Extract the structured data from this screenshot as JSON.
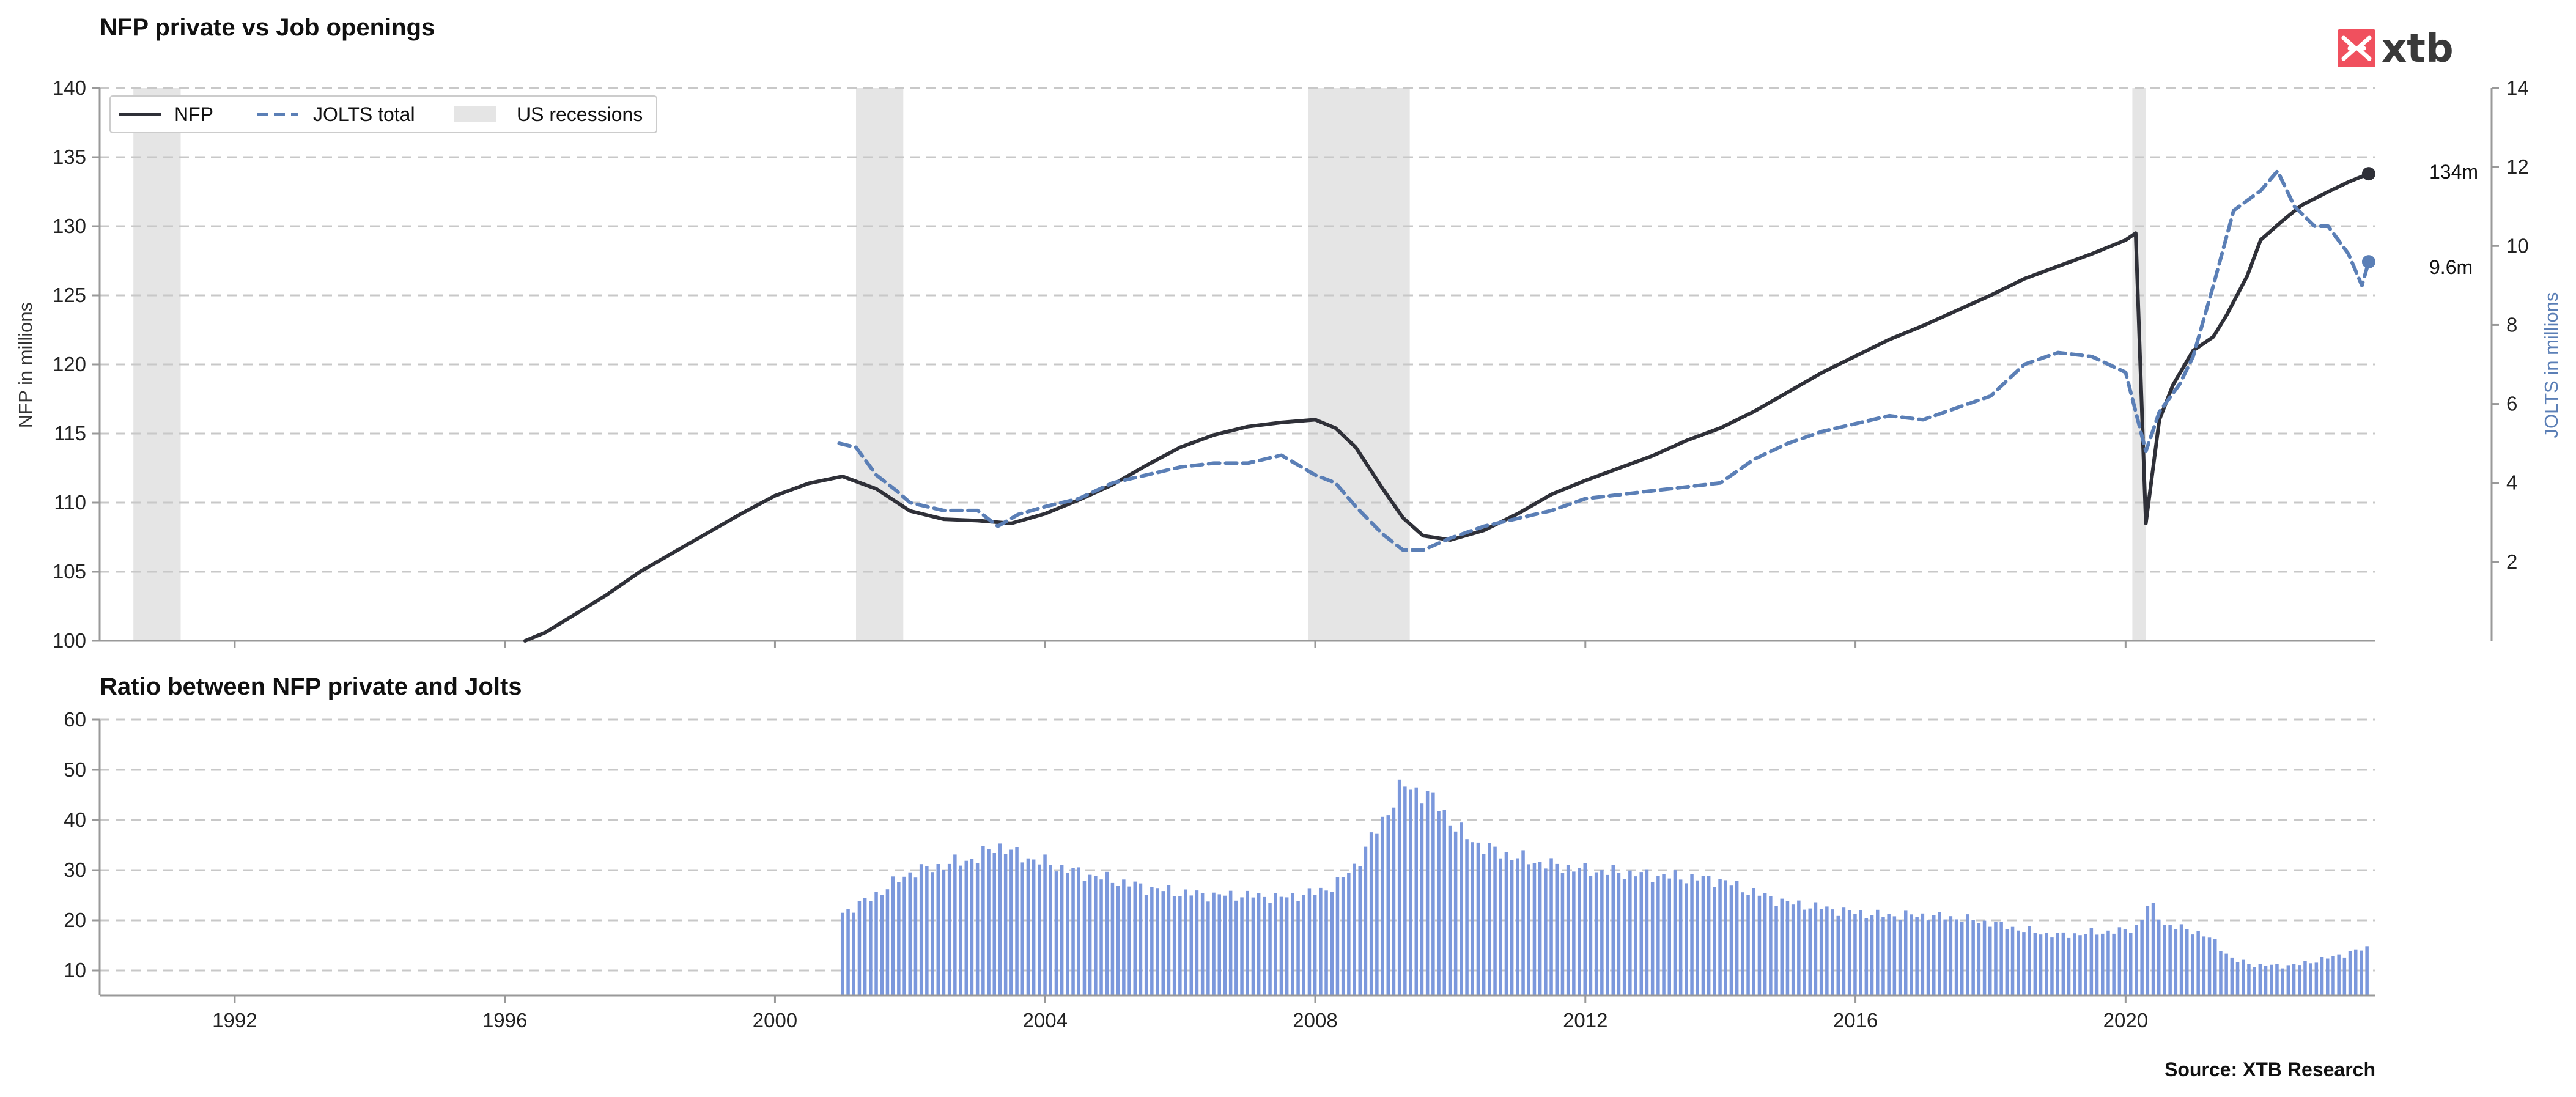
{
  "colors": {
    "nfp": "#2f3038",
    "jolts": "#5b7fb6",
    "bars": "#7b98dc",
    "recession": "#e5e5e5",
    "grid": "#c8c8c8",
    "logo": "#f0505e"
  },
  "logo": {
    "text": "xtb"
  },
  "source": "Source: XTB Research",
  "chart_data": [
    {
      "type": "line",
      "title": "NFP private vs Job openings",
      "ylabel": "NFP in millions",
      "y2label": "JOLTS in millions",
      "xlim": [
        1990.0,
        2023.7
      ],
      "ylim": [
        100,
        140
      ],
      "y2lim": [
        0,
        14
      ],
      "yticks": [
        "100",
        "105",
        "110",
        "115",
        "120",
        "125",
        "130",
        "135",
        "140"
      ],
      "y2ticks": [
        "2",
        "4",
        "6",
        "8",
        "10",
        "12",
        "14"
      ],
      "grid": true,
      "legend_position": "top-left",
      "legend": [
        "NFP",
        "JOLTS total",
        "US recessions"
      ],
      "recessions": [
        [
          1990.5,
          1991.2
        ],
        [
          2001.2,
          2001.9
        ],
        [
          2007.9,
          2009.4
        ],
        [
          2020.1,
          2020.3
        ]
      ],
      "end_labels": {
        "nfp": "134m",
        "jolts": "9.6m"
      },
      "series": [
        {
          "name": "NFP",
          "axis": "left",
          "x": [
            1996.3,
            1996.6,
            1997.0,
            1997.5,
            1998.0,
            1998.5,
            1999.0,
            1999.5,
            2000.0,
            2000.5,
            2001.0,
            2001.5,
            2002.0,
            2002.5,
            2003.0,
            2003.5,
            2004.0,
            2004.5,
            2005.0,
            2005.5,
            2006.0,
            2006.5,
            2007.0,
            2007.5,
            2008.0,
            2008.3,
            2008.6,
            2009.0,
            2009.3,
            2009.6,
            2010.0,
            2010.5,
            2011.0,
            2011.5,
            2012.0,
            2012.5,
            2013.0,
            2013.5,
            2014.0,
            2014.5,
            2015.0,
            2015.5,
            2016.0,
            2016.5,
            2017.0,
            2017.5,
            2018.0,
            2018.5,
            2019.0,
            2019.5,
            2020.0,
            2020.15,
            2020.3,
            2020.5,
            2020.7,
            2021.0,
            2021.3,
            2021.5,
            2021.8,
            2022.0,
            2022.3,
            2022.6,
            2023.0,
            2023.3,
            2023.6
          ],
          "values": [
            100.0,
            100.6,
            101.8,
            103.3,
            105.0,
            106.4,
            107.8,
            109.2,
            110.5,
            111.4,
            111.9,
            111.0,
            109.4,
            108.8,
            108.7,
            108.5,
            109.2,
            110.2,
            111.3,
            112.7,
            114.0,
            114.9,
            115.5,
            115.8,
            116.0,
            115.4,
            114.0,
            111.0,
            108.9,
            107.6,
            107.3,
            108.0,
            109.2,
            110.6,
            111.6,
            112.5,
            113.4,
            114.5,
            115.4,
            116.6,
            118.0,
            119.4,
            120.6,
            121.8,
            122.8,
            123.9,
            125.0,
            126.2,
            127.1,
            128.0,
            129.0,
            129.5,
            108.5,
            116.0,
            118.5,
            121.0,
            122.0,
            123.6,
            126.4,
            129.0,
            130.3,
            131.5,
            132.5,
            133.2,
            133.8
          ]
        },
        {
          "name": "JOLTS total",
          "axis": "right",
          "x": [
            2000.95,
            2001.2,
            2001.5,
            2001.8,
            2002.0,
            2002.5,
            2003.0,
            2003.3,
            2003.6,
            2004.0,
            2004.5,
            2005.0,
            2005.5,
            2006.0,
            2006.5,
            2007.0,
            2007.5,
            2008.0,
            2008.3,
            2008.6,
            2009.0,
            2009.3,
            2009.6,
            2010.0,
            2010.5,
            2011.0,
            2011.5,
            2012.0,
            2012.5,
            2013.0,
            2013.5,
            2014.0,
            2014.5,
            2015.0,
            2015.5,
            2016.0,
            2016.5,
            2017.0,
            2017.5,
            2018.0,
            2018.5,
            2019.0,
            2019.5,
            2020.0,
            2020.3,
            2020.5,
            2020.8,
            2021.0,
            2021.3,
            2021.6,
            2022.0,
            2022.25,
            2022.5,
            2022.8,
            2023.0,
            2023.3,
            2023.5,
            2023.6
          ],
          "values": [
            5.0,
            4.9,
            4.2,
            3.8,
            3.5,
            3.3,
            3.3,
            2.9,
            3.2,
            3.4,
            3.6,
            4.0,
            4.2,
            4.4,
            4.5,
            4.5,
            4.7,
            4.2,
            4.0,
            3.4,
            2.7,
            2.3,
            2.3,
            2.6,
            2.9,
            3.1,
            3.3,
            3.6,
            3.7,
            3.8,
            3.9,
            4.0,
            4.6,
            5.0,
            5.3,
            5.5,
            5.7,
            5.6,
            5.9,
            6.2,
            7.0,
            7.3,
            7.2,
            6.8,
            4.8,
            5.8,
            6.5,
            7.2,
            9.0,
            10.9,
            11.4,
            11.9,
            11.0,
            10.5,
            10.5,
            9.8,
            9.0,
            9.6
          ]
        }
      ]
    },
    {
      "type": "bar",
      "title": "Ratio between NFP private and Jolts",
      "xlim": [
        1990.0,
        2023.7
      ],
      "ylim": [
        5,
        60
      ],
      "yticks": [
        "10",
        "20",
        "30",
        "40",
        "50",
        "60"
      ],
      "xticks": [
        "1992",
        "1996",
        "2000",
        "2004",
        "2008",
        "2012",
        "2016",
        "2020"
      ],
      "grid": true,
      "bar_interval_years": 0.0833,
      "bar_start": 2001.0,
      "bar_end": 2023.6,
      "profile_x": [
        2001.0,
        2001.3,
        2001.6,
        2002.0,
        2002.5,
        2003.0,
        2003.3,
        2003.6,
        2004.0,
        2004.5,
        2005.0,
        2005.5,
        2006.0,
        2006.5,
        2007.0,
        2007.5,
        2008.0,
        2008.3,
        2008.6,
        2009.0,
        2009.3,
        2009.5,
        2009.8,
        2010.1,
        2010.5,
        2011.0,
        2011.5,
        2012.0,
        2012.5,
        2013.0,
        2013.5,
        2014.0,
        2014.5,
        2015.0,
        2015.5,
        2016.0,
        2016.5,
        2017.0,
        2017.5,
        2018.0,
        2018.5,
        2019.0,
        2019.5,
        2020.0,
        2020.2,
        2020.35,
        2020.6,
        2021.0,
        2021.3,
        2021.6,
        2022.0,
        2022.5,
        2023.0,
        2023.3,
        2023.6
      ],
      "profile_y": [
        21.5,
        23.5,
        26.0,
        29.5,
        31.0,
        32.5,
        35.0,
        33.0,
        31.5,
        29.5,
        28.0,
        26.5,
        25.5,
        25.0,
        25.0,
        24.5,
        25.5,
        27.0,
        31.0,
        40.0,
        47.0,
        46.0,
        43.5,
        38.0,
        34.5,
        32.5,
        31.0,
        30.0,
        29.5,
        29.0,
        28.5,
        28.0,
        25.5,
        23.5,
        22.5,
        21.5,
        21.0,
        21.0,
        20.5,
        19.5,
        18.0,
        17.0,
        17.5,
        18.0,
        19.0,
        23.5,
        19.0,
        18.0,
        16.0,
        12.0,
        11.0,
        11.0,
        12.5,
        13.5,
        14.5
      ]
    }
  ]
}
